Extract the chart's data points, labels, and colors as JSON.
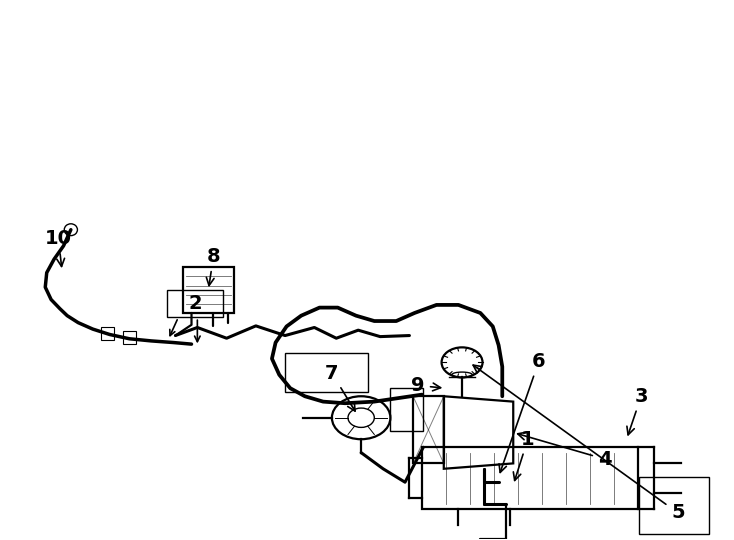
{
  "title": "",
  "background_color": "#ffffff",
  "line_color": "#000000",
  "fig_width": 7.34,
  "fig_height": 5.4,
  "dpi": 100,
  "label_fontsize": 14,
  "label_fontweight": "bold"
}
